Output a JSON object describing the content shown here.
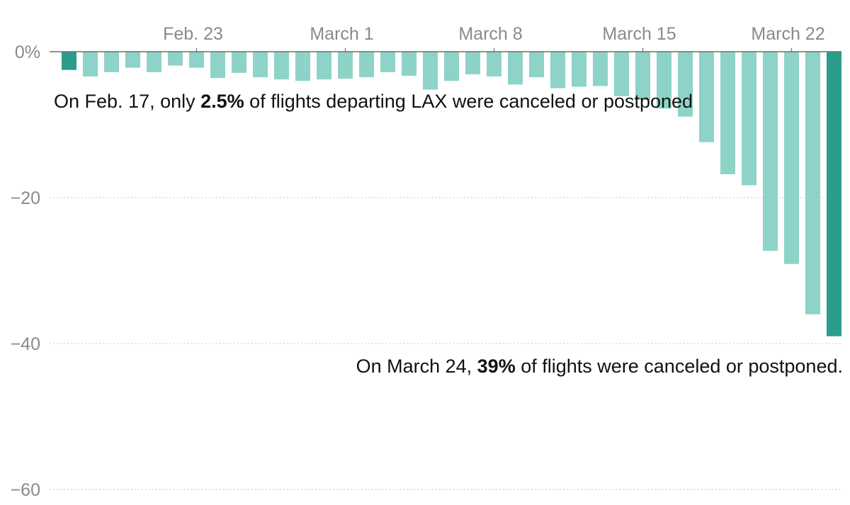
{
  "colors": {
    "bar": "#8ed3c7",
    "highlight": "#2a9d8c",
    "zero_line": "#6f6f6f",
    "grid": "#b5b5b5",
    "tick_text": "#8a8a8a"
  },
  "annotations": {
    "start": {
      "pre": "On Feb. 17, only ",
      "bold": "2.5%",
      "post": " of flights departing LAX were canceled or postponed"
    },
    "end": {
      "pre": "On March 24, ",
      "bold": "39%",
      "post": " of flights were canceled or postponed."
    }
  },
  "chart_data": {
    "type": "bar",
    "title": "",
    "xlabel": "",
    "ylabel": "",
    "y_unit": "%",
    "ylim": [
      -60,
      0
    ],
    "y_ticks": [
      {
        "value": 0,
        "label": "0%"
      },
      {
        "value": -20,
        "label": "−20"
      },
      {
        "value": -40,
        "label": "−40"
      },
      {
        "value": -60,
        "label": "−60"
      }
    ],
    "grid": true,
    "x_ticks": [
      {
        "category": "Feb. 23",
        "label": "Feb. 23"
      },
      {
        "category": "March 1",
        "label": "March 1"
      },
      {
        "category": "March 8",
        "label": "March 8"
      },
      {
        "category": "March 15",
        "label": "March 15"
      },
      {
        "category": "March 22",
        "label": "March 22"
      }
    ],
    "highlighted": [
      "Feb. 17",
      "March 24"
    ],
    "categories": [
      "Feb. 17",
      "Feb. 18",
      "Feb. 19",
      "Feb. 20",
      "Feb. 21",
      "Feb. 22",
      "Feb. 23",
      "Feb. 24",
      "Feb. 25",
      "Feb. 26",
      "Feb. 27",
      "Feb. 28",
      "Feb. 29",
      "March 1",
      "March 2",
      "March 3",
      "March 4",
      "March 5",
      "March 6",
      "March 7",
      "March 8",
      "March 9",
      "March 10",
      "March 11",
      "March 12",
      "March 13",
      "March 14",
      "March 15",
      "March 16",
      "March 17",
      "March 18",
      "March 19",
      "March 20",
      "March 21",
      "March 22",
      "March 23",
      "March 24"
    ],
    "values": [
      -2.5,
      -3.4,
      -2.8,
      -2.2,
      -2.8,
      -1.9,
      -2.2,
      -3.6,
      -2.9,
      -3.5,
      -3.8,
      -4.0,
      -3.8,
      -3.7,
      -3.5,
      -2.8,
      -3.3,
      -5.2,
      -4.0,
      -3.1,
      -3.4,
      -4.5,
      -3.5,
      -5.0,
      -4.8,
      -4.7,
      -6.1,
      -6.6,
      -7.8,
      -8.9,
      -12.4,
      -16.8,
      -18.3,
      -27.3,
      -29.1,
      -36.0,
      -39.0
    ]
  }
}
